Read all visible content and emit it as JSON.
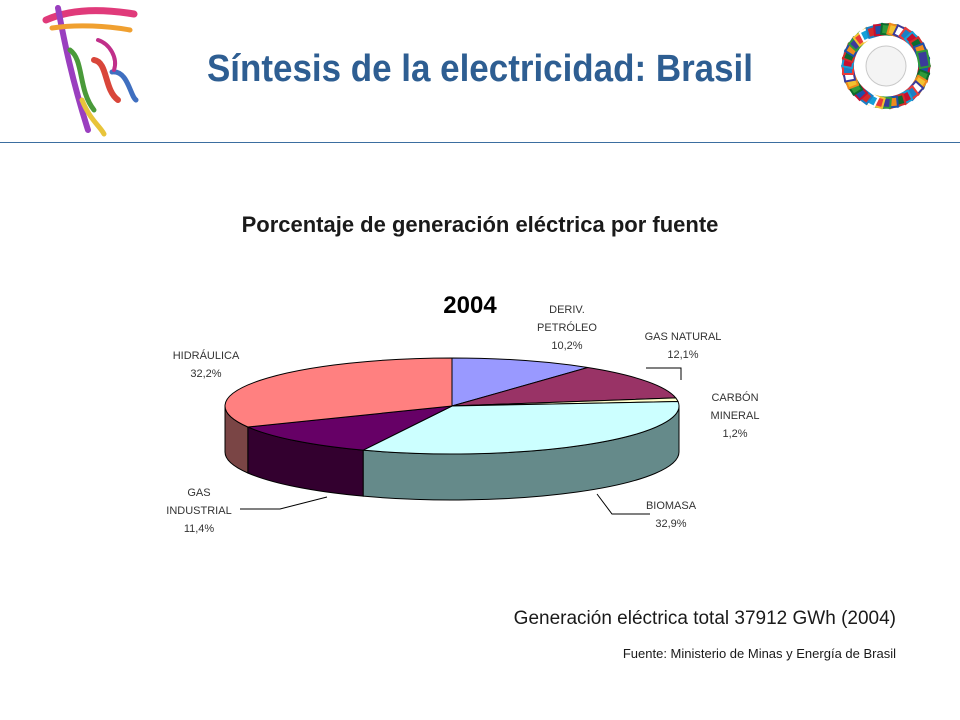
{
  "header": {
    "title": "Síntesis de la electricidad: Brasil"
  },
  "chart_data": {
    "type": "pie",
    "title": "Porcentaje de generación eléctrica por fuente",
    "year_label": "2004",
    "slices": [
      {
        "label_lines": [
          "DERIV.",
          "PETRÓLEO"
        ],
        "value": 10.2,
        "value_label": "10,2%",
        "color": "#9999FF",
        "side_color": "#5C5C99"
      },
      {
        "label_lines": [
          "GAS NATURAL"
        ],
        "value": 12.1,
        "value_label": "12,1%",
        "color": "#993366",
        "side_color": "#5C1F3D"
      },
      {
        "label_lines": [
          "CARBÓN",
          "MINERAL"
        ],
        "value": 1.2,
        "value_label": "1,2%",
        "color": "#FFFFCC",
        "side_color": "#99997A"
      },
      {
        "label_lines": [
          "BIOMASA"
        ],
        "value": 32.9,
        "value_label": "32,9%",
        "color": "#CCFFFF",
        "side_color": "#658A8A"
      },
      {
        "label_lines": [
          "GAS",
          "INDUSTRIAL"
        ],
        "value": 11.4,
        "value_label": "11,4%",
        "color": "#660066",
        "side_color": "#33002F"
      },
      {
        "label_lines": [
          "HIDRÁULICA"
        ],
        "value": 32.2,
        "value_label": "32,2%",
        "color": "#FF8080",
        "side_color": "#7A4545"
      }
    ]
  },
  "footer": {
    "total": "Generación eléctrica total 37912 GWh (2004)",
    "source": "Fuente: Ministerio de Minas y Energía de Brasil"
  }
}
